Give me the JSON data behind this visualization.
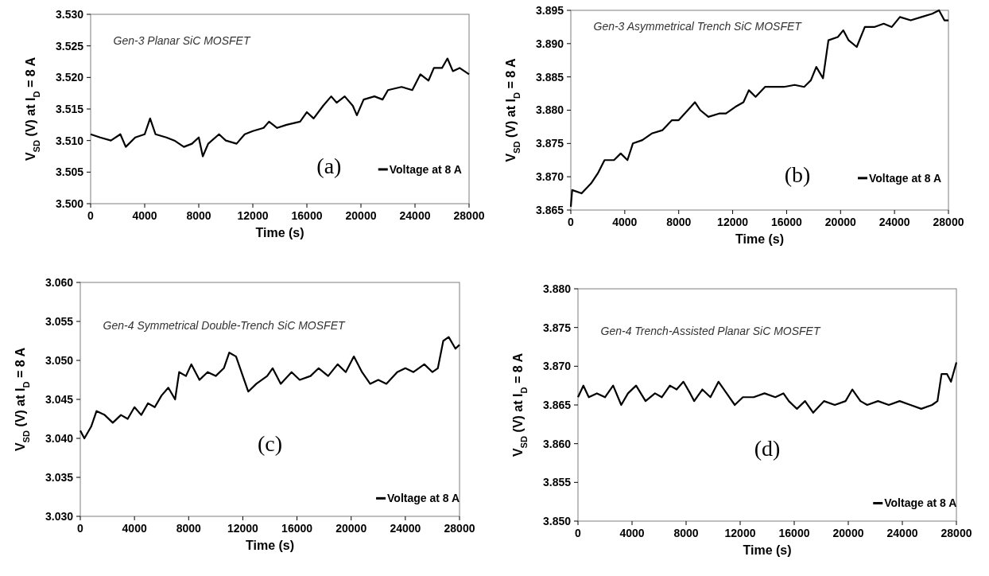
{
  "chart_data": [
    {
      "type": "line",
      "xlabel": "Time (s)",
      "ylabel": "V$_{SD}$ (V) at I$_{D}$ = 8 A",
      "annotations": [
        "Gen-3 Planar SiC MOSFET",
        "(a)"
      ],
      "legend": "bottom right",
      "xlim": [
        0,
        28000
      ],
      "xticks": [
        0,
        4000,
        8000,
        12000,
        16000,
        20000,
        24000,
        28000
      ],
      "ylim": [
        3.5,
        3.53
      ],
      "yticks": [
        {
          "value": 3.5,
          "label": "3.500"
        },
        {
          "value": 3.505,
          "label": "3.505"
        },
        {
          "value": 3.51,
          "label": "3.510"
        },
        {
          "value": 3.515,
          "label": "3.515"
        },
        {
          "value": 3.52,
          "label": "3.520"
        },
        {
          "value": 3.525,
          "label": "3.525"
        },
        {
          "value": 3.53,
          "label": "3.530"
        }
      ],
      "x": [
        0,
        700,
        1500,
        2200,
        2600,
        3300,
        4000,
        4400,
        4800,
        5600,
        6200,
        6900,
        7500,
        8000,
        8300,
        8700,
        9500,
        10000,
        10800,
        11400,
        12000,
        12800,
        13200,
        13800,
        14500,
        15500,
        16000,
        16500,
        17200,
        17800,
        18200,
        18800,
        19400,
        19700,
        20200,
        21000,
        21600,
        22000,
        23000,
        23800,
        24400,
        25000,
        25400,
        26000,
        26400,
        26800,
        27300,
        28000
      ],
      "series": [
        {
          "name": "Voltage at 8 A",
          "color": "#000000",
          "values": [
            3.511,
            3.5105,
            3.51,
            3.511,
            3.509,
            3.5105,
            3.511,
            3.5135,
            3.511,
            3.5105,
            3.51,
            3.509,
            3.5095,
            3.5105,
            3.5075,
            3.5095,
            3.511,
            3.51,
            3.5095,
            3.511,
            3.5115,
            3.512,
            3.513,
            3.512,
            3.5125,
            3.513,
            3.5145,
            3.5135,
            3.5155,
            3.517,
            3.516,
            3.517,
            3.5155,
            3.514,
            3.5165,
            3.517,
            3.5165,
            3.518,
            3.5185,
            3.518,
            3.5205,
            3.5195,
            3.5215,
            3.5215,
            3.523,
            3.521,
            3.5215,
            3.5205
          ]
        }
      ]
    },
    {
      "type": "line",
      "xlabel": "Time (s)",
      "ylabel": "V$_{SD}$ (V) at I$_{D}$ = 8 A",
      "annotations": [
        "Gen-3 Asymmetrical Trench SiC MOSFET",
        "(b)"
      ],
      "legend": "bottom right",
      "xlim": [
        0,
        28000
      ],
      "xticks": [
        0,
        4000,
        8000,
        12000,
        16000,
        20000,
        24000,
        28000
      ],
      "ylim": [
        3.865,
        3.895
      ],
      "yticks": [
        {
          "value": 3.865,
          "label": "3.865"
        },
        {
          "value": 3.87,
          "label": "3.870"
        },
        {
          "value": 3.875,
          "label": "3.875"
        },
        {
          "value": 3.88,
          "label": "3.880"
        },
        {
          "value": 3.885,
          "label": "3.885"
        },
        {
          "value": 3.89,
          "label": "3.890"
        },
        {
          "value": 3.895,
          "label": "3.895"
        }
      ],
      "x": [
        0,
        100,
        800,
        1500,
        2000,
        2500,
        3200,
        3700,
        4200,
        4600,
        5300,
        6000,
        6800,
        7500,
        8000,
        8900,
        9200,
        9600,
        10200,
        11000,
        11500,
        12200,
        12800,
        13200,
        13700,
        14400,
        15200,
        15800,
        16600,
        17300,
        17800,
        18200,
        18700,
        19100,
        19800,
        20200,
        20600,
        21200,
        21800,
        22500,
        23200,
        23800,
        24400,
        25200,
        26000,
        26800,
        27300,
        27700,
        28000
      ],
      "series": [
        {
          "name": "Voltage at 8 A",
          "color": "#000000",
          "values": [
            3.8655,
            3.868,
            3.8675,
            3.869,
            3.8705,
            3.8725,
            3.8725,
            3.8735,
            3.8725,
            3.875,
            3.8755,
            3.8765,
            3.877,
            3.8785,
            3.8785,
            3.8805,
            3.8812,
            3.88,
            3.879,
            3.8795,
            3.8795,
            3.8805,
            3.8812,
            3.883,
            3.882,
            3.8835,
            3.8835,
            3.8835,
            3.8838,
            3.8835,
            3.8845,
            3.8865,
            3.8848,
            3.8905,
            3.891,
            3.892,
            3.8905,
            3.8895,
            3.8925,
            3.8925,
            3.893,
            3.8925,
            3.894,
            3.8935,
            3.894,
            3.8945,
            3.895,
            3.8935,
            3.8935
          ]
        }
      ]
    },
    {
      "type": "line",
      "xlabel": "Time (s)",
      "ylabel": "V$_{SD}$ (V) at I$_{D}$ = 8 A",
      "annotations": [
        "Gen-4 Symmetrical Double-Trench SiC MOSFET",
        "(c)"
      ],
      "legend": "bottom right",
      "xlim": [
        0,
        28000
      ],
      "xticks": [
        0,
        4000,
        8000,
        12000,
        16000,
        20000,
        24000,
        28000
      ],
      "ylim": [
        3.03,
        3.06
      ],
      "yticks": [
        {
          "value": 3.03,
          "label": "3.030"
        },
        {
          "value": 3.035,
          "label": "3.035"
        },
        {
          "value": 3.04,
          "label": "3.040"
        },
        {
          "value": 3.045,
          "label": "3.045"
        },
        {
          "value": 3.05,
          "label": "3.050"
        },
        {
          "value": 3.055,
          "label": "3.055"
        },
        {
          "value": 3.06,
          "label": "3.060"
        }
      ],
      "x": [
        0,
        300,
        800,
        1200,
        1800,
        2400,
        3000,
        3500,
        4000,
        4500,
        5000,
        5500,
        6000,
        6500,
        7000,
        7300,
        7800,
        8200,
        8800,
        9400,
        10000,
        10600,
        11000,
        11500,
        12000,
        12400,
        13000,
        13800,
        14200,
        14800,
        15600,
        16200,
        17000,
        17600,
        18300,
        19000,
        19600,
        20200,
        20800,
        21400,
        22000,
        22600,
        23400,
        24000,
        24600,
        25400,
        26000,
        26400,
        26800,
        27200,
        27700,
        28000
      ],
      "series": [
        {
          "name": "Voltage at 8 A",
          "color": "#000000",
          "values": [
            3.041,
            3.04,
            3.0415,
            3.0435,
            3.043,
            3.042,
            3.043,
            3.0425,
            3.044,
            3.043,
            3.0445,
            3.044,
            3.0455,
            3.0465,
            3.045,
            3.0485,
            3.048,
            3.0495,
            3.0475,
            3.0485,
            3.048,
            3.049,
            3.051,
            3.0505,
            3.048,
            3.046,
            3.047,
            3.048,
            3.049,
            3.047,
            3.0485,
            3.0475,
            3.048,
            3.049,
            3.048,
            3.0495,
            3.0485,
            3.0505,
            3.0485,
            3.047,
            3.0475,
            3.047,
            3.0485,
            3.049,
            3.0485,
            3.0495,
            3.0485,
            3.049,
            3.0525,
            3.053,
            3.0515,
            3.052
          ]
        }
      ]
    },
    {
      "type": "line",
      "xlabel": "Time (s)",
      "ylabel": "V$_{SD}$ (V) at I$_{D}$ = 8 A",
      "annotations": [
        "Gen-4 Trench-Assisted Planar SiC MOSFET",
        "(d)"
      ],
      "legend": "bottom right",
      "xlim": [
        0,
        28000
      ],
      "xticks": [
        0,
        4000,
        8000,
        12000,
        16000,
        20000,
        24000,
        28000
      ],
      "ylim": [
        3.85,
        3.88
      ],
      "yticks": [
        {
          "value": 3.85,
          "label": "3.850"
        },
        {
          "value": 3.855,
          "label": "3.855"
        },
        {
          "value": 3.86,
          "label": "3.860"
        },
        {
          "value": 3.865,
          "label": "3.865"
        },
        {
          "value": 3.87,
          "label": "3.870"
        },
        {
          "value": 3.875,
          "label": "3.875"
        },
        {
          "value": 3.88,
          "label": "3.880"
        }
      ],
      "x": [
        0,
        400,
        800,
        1400,
        2000,
        2600,
        3200,
        3700,
        4300,
        5000,
        5700,
        6200,
        6800,
        7300,
        7800,
        8300,
        8600,
        9200,
        9800,
        10400,
        11000,
        11600,
        12200,
        13000,
        13800,
        14600,
        15200,
        15600,
        16200,
        16800,
        17400,
        18200,
        19000,
        19800,
        20300,
        20900,
        21400,
        22200,
        23000,
        23800,
        24600,
        25400,
        26200,
        26600,
        26900,
        27300,
        27600,
        28000
      ],
      "series": [
        {
          "name": "Voltage at 8 A",
          "color": "#000000",
          "values": [
            3.866,
            3.8675,
            3.866,
            3.8665,
            3.866,
            3.8675,
            3.865,
            3.8665,
            3.8675,
            3.8655,
            3.8665,
            3.866,
            3.8675,
            3.867,
            3.868,
            3.8665,
            3.8655,
            3.867,
            3.866,
            3.868,
            3.8665,
            3.865,
            3.866,
            3.866,
            3.8665,
            3.866,
            3.8665,
            3.8655,
            3.8645,
            3.8655,
            3.864,
            3.8655,
            3.865,
            3.8655,
            3.867,
            3.8655,
            3.865,
            3.8655,
            3.865,
            3.8655,
            3.865,
            3.8645,
            3.865,
            3.8655,
            3.869,
            3.869,
            3.868,
            3.8705
          ]
        }
      ]
    }
  ]
}
